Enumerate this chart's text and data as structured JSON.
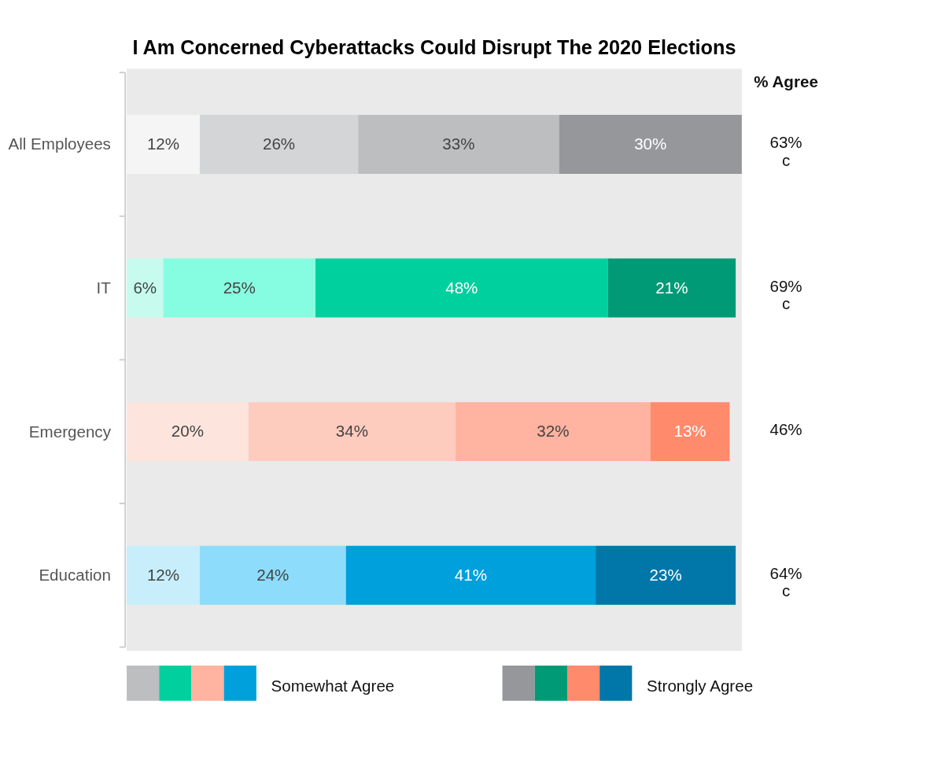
{
  "chart_data": {
    "type": "bar",
    "title": "I Am Concerned Cyberattacks Could Disrupt The 2020 Elections",
    "orientation": "horizontal",
    "stacked": true,
    "categories": [
      "All Employees",
      "IT",
      "Emergency",
      "Education"
    ],
    "tick_labels": "y",
    "grid": false,
    "legend": "bottom",
    "series": [
      {
        "colors": [
          "#f5f5f5",
          "#c6fbee",
          "#fde5de",
          "#c8eefc"
        ],
        "values": [
          12,
          6,
          20,
          12
        ],
        "value_labels": [
          "12%",
          "6%",
          "20%",
          "12%"
        ]
      },
      {
        "colors": [
          "#d4d5d6",
          "#86fde0",
          "#fecbbf",
          "#8edcfc"
        ],
        "values": [
          26,
          25,
          34,
          24
        ],
        "value_labels": [
          "26%",
          "25%",
          "34%",
          "24%"
        ]
      },
      {
        "name": "Somewhat Agree",
        "colors": [
          "#bdbec0",
          "#00d09e",
          "#ffb3a0",
          "#00a0dc"
        ],
        "values": [
          33,
          48,
          32,
          41
        ],
        "value_labels": [
          "33%",
          "48%",
          "32%",
          "41%"
        ]
      },
      {
        "name": "Strongly Agree",
        "colors": [
          "#96979b",
          "#009b76",
          "#ff8a6c",
          "#0077a8"
        ],
        "values": [
          30,
          21,
          13,
          23
        ],
        "value_labels": [
          "30%",
          "21%",
          "13%",
          "23%"
        ]
      }
    ],
    "annotations": [
      "% Agree",
      "63%\nc",
      "69%\nc",
      "46%",
      "64%\nc"
    ]
  }
}
